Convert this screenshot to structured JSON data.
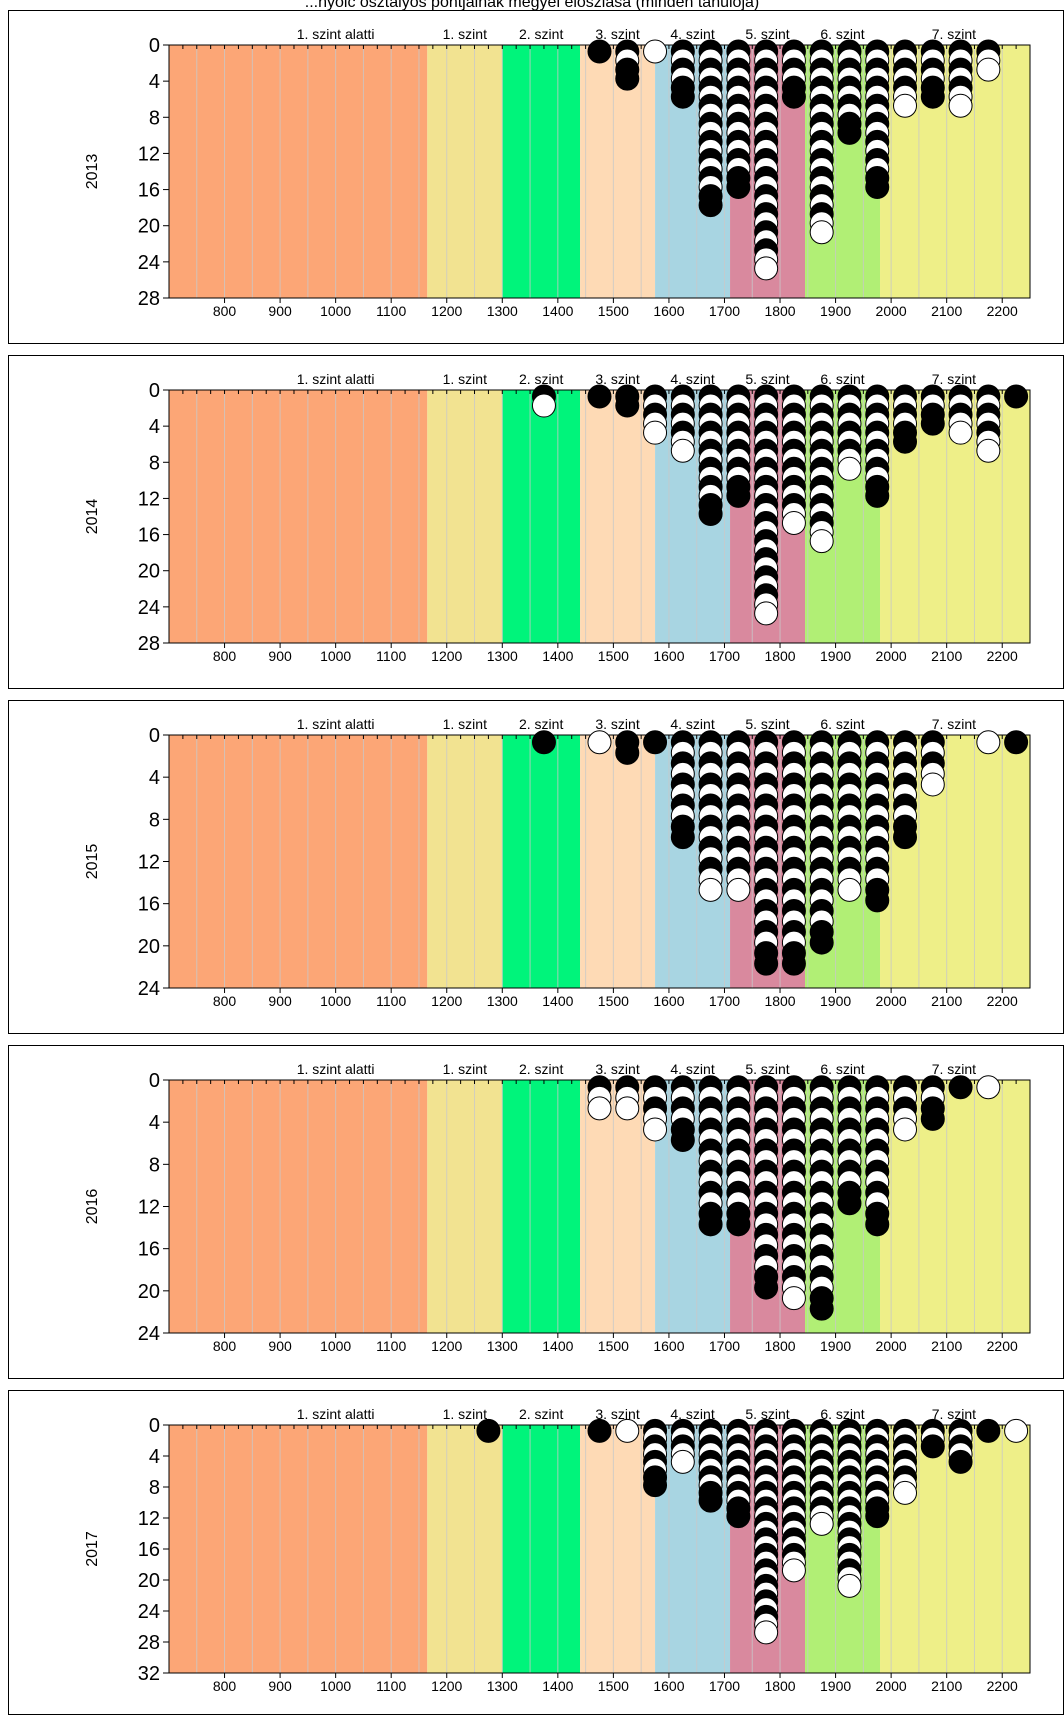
{
  "title": "...nyolc osztályos pontjainak megyei eloszlása (minden tanulója)",
  "colors": {
    "bands": [
      "#fca676",
      "#f2e391",
      "#00f47b",
      "#fedab5",
      "#a8d5e2",
      "#d9899e",
      "#b1ef75",
      "#eeef88"
    ],
    "grid": "#c8c8c8",
    "dot_dark": "#000000",
    "dot_light": "#ffffff"
  },
  "chart_data": [
    {
      "type": "scatter",
      "year": "2013",
      "ylabel": "2013",
      "xlim": [
        700,
        2250
      ],
      "ylim": [
        0,
        28
      ],
      "y_ticks": [
        0,
        4,
        8,
        12,
        16,
        20,
        24,
        28
      ],
      "x_ticks": [
        800,
        900,
        1000,
        1100,
        1200,
        1300,
        1400,
        1500,
        1600,
        1700,
        1800,
        1900,
        2000,
        2100,
        2200
      ],
      "levels": [
        {
          "label": "1. szint alatti",
          "from": 700,
          "to": 1165
        },
        {
          "label": "1. szint",
          "from": 1165,
          "to": 1300
        },
        {
          "label": "2. szint",
          "from": 1300,
          "to": 1440
        },
        {
          "label": "3. szint",
          "from": 1440,
          "to": 1575
        },
        {
          "label": "4. szint",
          "from": 1575,
          "to": 1710
        },
        {
          "label": "5. szint",
          "from": 1710,
          "to": 1845
        },
        {
          "label": "6. szint",
          "from": 1845,
          "to": 1980
        },
        {
          "label": "7. szint",
          "from": 1980,
          "to": 2250
        }
      ],
      "columns": [
        {
          "x": 1475,
          "count": 1,
          "last": "dark"
        },
        {
          "x": 1525,
          "count": 4,
          "last": "dark"
        },
        {
          "x": 1575,
          "count": 1,
          "last": "light"
        },
        {
          "x": 1625,
          "count": 6,
          "last": "dark"
        },
        {
          "x": 1675,
          "count": 18,
          "last": "dark"
        },
        {
          "x": 1725,
          "count": 16,
          "last": "dark"
        },
        {
          "x": 1775,
          "count": 25,
          "last": "light"
        },
        {
          "x": 1825,
          "count": 6,
          "last": "dark"
        },
        {
          "x": 1875,
          "count": 21,
          "last": "light"
        },
        {
          "x": 1925,
          "count": 10,
          "last": "dark"
        },
        {
          "x": 1975,
          "count": 16,
          "last": "dark"
        },
        {
          "x": 2025,
          "count": 7,
          "last": "light"
        },
        {
          "x": 2075,
          "count": 6,
          "last": "dark"
        },
        {
          "x": 2125,
          "count": 7,
          "last": "light"
        },
        {
          "x": 2175,
          "count": 3,
          "last": "light"
        }
      ]
    },
    {
      "type": "scatter",
      "year": "2014",
      "ylabel": "2014",
      "xlim": [
        700,
        2250
      ],
      "ylim": [
        0,
        28
      ],
      "y_ticks": [
        0,
        4,
        8,
        12,
        16,
        20,
        24,
        28
      ],
      "x_ticks": [
        800,
        900,
        1000,
        1100,
        1200,
        1300,
        1400,
        1500,
        1600,
        1700,
        1800,
        1900,
        2000,
        2100,
        2200
      ],
      "levels": [
        {
          "label": "1. szint alatti",
          "from": 700,
          "to": 1165
        },
        {
          "label": "1. szint",
          "from": 1165,
          "to": 1300
        },
        {
          "label": "2. szint",
          "from": 1300,
          "to": 1440
        },
        {
          "label": "3. szint",
          "from": 1440,
          "to": 1575
        },
        {
          "label": "4. szint",
          "from": 1575,
          "to": 1710
        },
        {
          "label": "5. szint",
          "from": 1710,
          "to": 1845
        },
        {
          "label": "6. szint",
          "from": 1845,
          "to": 1980
        },
        {
          "label": "7. szint",
          "from": 1980,
          "to": 2250
        }
      ],
      "columns": [
        {
          "x": 1375,
          "count": 2,
          "last": "light"
        },
        {
          "x": 1475,
          "count": 1,
          "last": "dark"
        },
        {
          "x": 1525,
          "count": 2,
          "last": "dark"
        },
        {
          "x": 1575,
          "count": 5,
          "last": "light"
        },
        {
          "x": 1625,
          "count": 7,
          "last": "light"
        },
        {
          "x": 1675,
          "count": 14,
          "last": "dark"
        },
        {
          "x": 1725,
          "count": 12,
          "last": "dark"
        },
        {
          "x": 1775,
          "count": 25,
          "last": "light"
        },
        {
          "x": 1825,
          "count": 15,
          "last": "light"
        },
        {
          "x": 1875,
          "count": 17,
          "last": "light"
        },
        {
          "x": 1925,
          "count": 9,
          "last": "light"
        },
        {
          "x": 1975,
          "count": 12,
          "last": "dark"
        },
        {
          "x": 2025,
          "count": 6,
          "last": "dark"
        },
        {
          "x": 2075,
          "count": 4,
          "last": "dark"
        },
        {
          "x": 2125,
          "count": 5,
          "last": "light"
        },
        {
          "x": 2175,
          "count": 7,
          "last": "light"
        },
        {
          "x": 2225,
          "count": 1,
          "last": "dark"
        }
      ]
    },
    {
      "type": "scatter",
      "year": "2015",
      "ylabel": "2015",
      "xlim": [
        700,
        2250
      ],
      "ylim": [
        0,
        24
      ],
      "y_ticks": [
        0,
        4,
        8,
        12,
        16,
        20,
        24
      ],
      "x_ticks": [
        800,
        900,
        1000,
        1100,
        1200,
        1300,
        1400,
        1500,
        1600,
        1700,
        1800,
        1900,
        2000,
        2100,
        2200
      ],
      "levels": [
        {
          "label": "1. szint alatti",
          "from": 700,
          "to": 1165
        },
        {
          "label": "1. szint",
          "from": 1165,
          "to": 1300
        },
        {
          "label": "2. szint",
          "from": 1300,
          "to": 1440
        },
        {
          "label": "3. szint",
          "from": 1440,
          "to": 1575
        },
        {
          "label": "4. szint",
          "from": 1575,
          "to": 1710
        },
        {
          "label": "5. szint",
          "from": 1710,
          "to": 1845
        },
        {
          "label": "6. szint",
          "from": 1845,
          "to": 1980
        },
        {
          "label": "7. szint",
          "from": 1980,
          "to": 2250
        }
      ],
      "columns": [
        {
          "x": 1375,
          "count": 1,
          "last": "dark"
        },
        {
          "x": 1475,
          "count": 1,
          "last": "light"
        },
        {
          "x": 1525,
          "count": 2,
          "last": "dark"
        },
        {
          "x": 1575,
          "count": 1,
          "last": "dark"
        },
        {
          "x": 1625,
          "count": 10,
          "last": "dark"
        },
        {
          "x": 1675,
          "count": 15,
          "last": "light"
        },
        {
          "x": 1725,
          "count": 15,
          "last": "light"
        },
        {
          "x": 1775,
          "count": 22,
          "last": "dark"
        },
        {
          "x": 1825,
          "count": 22,
          "last": "dark"
        },
        {
          "x": 1875,
          "count": 20,
          "last": "dark"
        },
        {
          "x": 1925,
          "count": 15,
          "last": "light"
        },
        {
          "x": 1975,
          "count": 16,
          "last": "dark"
        },
        {
          "x": 2025,
          "count": 10,
          "last": "dark"
        },
        {
          "x": 2075,
          "count": 5,
          "last": "light"
        },
        {
          "x": 2175,
          "count": 1,
          "last": "light"
        },
        {
          "x": 2225,
          "count": 1,
          "last": "dark"
        }
      ]
    },
    {
      "type": "scatter",
      "year": "2016",
      "ylabel": "2016",
      "xlim": [
        700,
        2250
      ],
      "ylim": [
        0,
        24
      ],
      "y_ticks": [
        0,
        4,
        8,
        12,
        16,
        20,
        24
      ],
      "x_ticks": [
        800,
        900,
        1000,
        1100,
        1200,
        1300,
        1400,
        1500,
        1600,
        1700,
        1800,
        1900,
        2000,
        2100,
        2200
      ],
      "levels": [
        {
          "label": "1. szint alatti",
          "from": 700,
          "to": 1165
        },
        {
          "label": "1. szint",
          "from": 1165,
          "to": 1300
        },
        {
          "label": "2. szint",
          "from": 1300,
          "to": 1440
        },
        {
          "label": "3. szint",
          "from": 1440,
          "to": 1575
        },
        {
          "label": "4. szint",
          "from": 1575,
          "to": 1710
        },
        {
          "label": "5. szint",
          "from": 1710,
          "to": 1845
        },
        {
          "label": "6. szint",
          "from": 1845,
          "to": 1980
        },
        {
          "label": "7. szint",
          "from": 1980,
          "to": 2250
        }
      ],
      "columns": [
        {
          "x": 1475,
          "count": 3,
          "last": "light"
        },
        {
          "x": 1525,
          "count": 3,
          "last": "light"
        },
        {
          "x": 1575,
          "count": 5,
          "last": "light"
        },
        {
          "x": 1625,
          "count": 6,
          "last": "dark"
        },
        {
          "x": 1675,
          "count": 14,
          "last": "dark"
        },
        {
          "x": 1725,
          "count": 14,
          "last": "dark"
        },
        {
          "x": 1775,
          "count": 20,
          "last": "dark"
        },
        {
          "x": 1825,
          "count": 21,
          "last": "light"
        },
        {
          "x": 1875,
          "count": 22,
          "last": "dark"
        },
        {
          "x": 1925,
          "count": 12,
          "last": "dark"
        },
        {
          "x": 1975,
          "count": 14,
          "last": "dark"
        },
        {
          "x": 2025,
          "count": 5,
          "last": "light"
        },
        {
          "x": 2075,
          "count": 4,
          "last": "dark"
        },
        {
          "x": 2125,
          "count": 1,
          "last": "dark"
        },
        {
          "x": 2175,
          "count": 1,
          "last": "light"
        }
      ]
    },
    {
      "type": "scatter",
      "year": "2017",
      "ylabel": "2017",
      "xlim": [
        700,
        2250
      ],
      "ylim": [
        0,
        32
      ],
      "y_ticks": [
        0,
        4,
        8,
        12,
        16,
        20,
        24,
        28,
        32
      ],
      "x_ticks": [
        800,
        900,
        1000,
        1100,
        1200,
        1300,
        1400,
        1500,
        1600,
        1700,
        1800,
        1900,
        2000,
        2100,
        2200
      ],
      "levels": [
        {
          "label": "1. szint alatti",
          "from": 700,
          "to": 1165
        },
        {
          "label": "1. szint",
          "from": 1165,
          "to": 1300
        },
        {
          "label": "2. szint",
          "from": 1300,
          "to": 1440
        },
        {
          "label": "3. szint",
          "from": 1440,
          "to": 1575
        },
        {
          "label": "4. szint",
          "from": 1575,
          "to": 1710
        },
        {
          "label": "5. szint",
          "from": 1710,
          "to": 1845
        },
        {
          "label": "6. szint",
          "from": 1845,
          "to": 1980
        },
        {
          "label": "7. szint",
          "from": 1980,
          "to": 2250
        }
      ],
      "columns": [
        {
          "x": 1275,
          "count": 1,
          "last": "dark"
        },
        {
          "x": 1475,
          "count": 1,
          "last": "dark"
        },
        {
          "x": 1525,
          "count": 1,
          "last": "light"
        },
        {
          "x": 1575,
          "count": 8,
          "last": "dark"
        },
        {
          "x": 1625,
          "count": 5,
          "last": "light"
        },
        {
          "x": 1675,
          "count": 10,
          "last": "dark"
        },
        {
          "x": 1725,
          "count": 12,
          "last": "dark"
        },
        {
          "x": 1775,
          "count": 27,
          "last": "light"
        },
        {
          "x": 1825,
          "count": 19,
          "last": "light"
        },
        {
          "x": 1875,
          "count": 13,
          "last": "light"
        },
        {
          "x": 1925,
          "count": 21,
          "last": "light"
        },
        {
          "x": 1975,
          "count": 12,
          "last": "dark"
        },
        {
          "x": 2025,
          "count": 9,
          "last": "light"
        },
        {
          "x": 2075,
          "count": 3,
          "last": "dark"
        },
        {
          "x": 2125,
          "count": 5,
          "last": "dark"
        },
        {
          "x": 2175,
          "count": 1,
          "last": "dark"
        },
        {
          "x": 2225,
          "count": 1,
          "last": "light"
        }
      ]
    }
  ]
}
